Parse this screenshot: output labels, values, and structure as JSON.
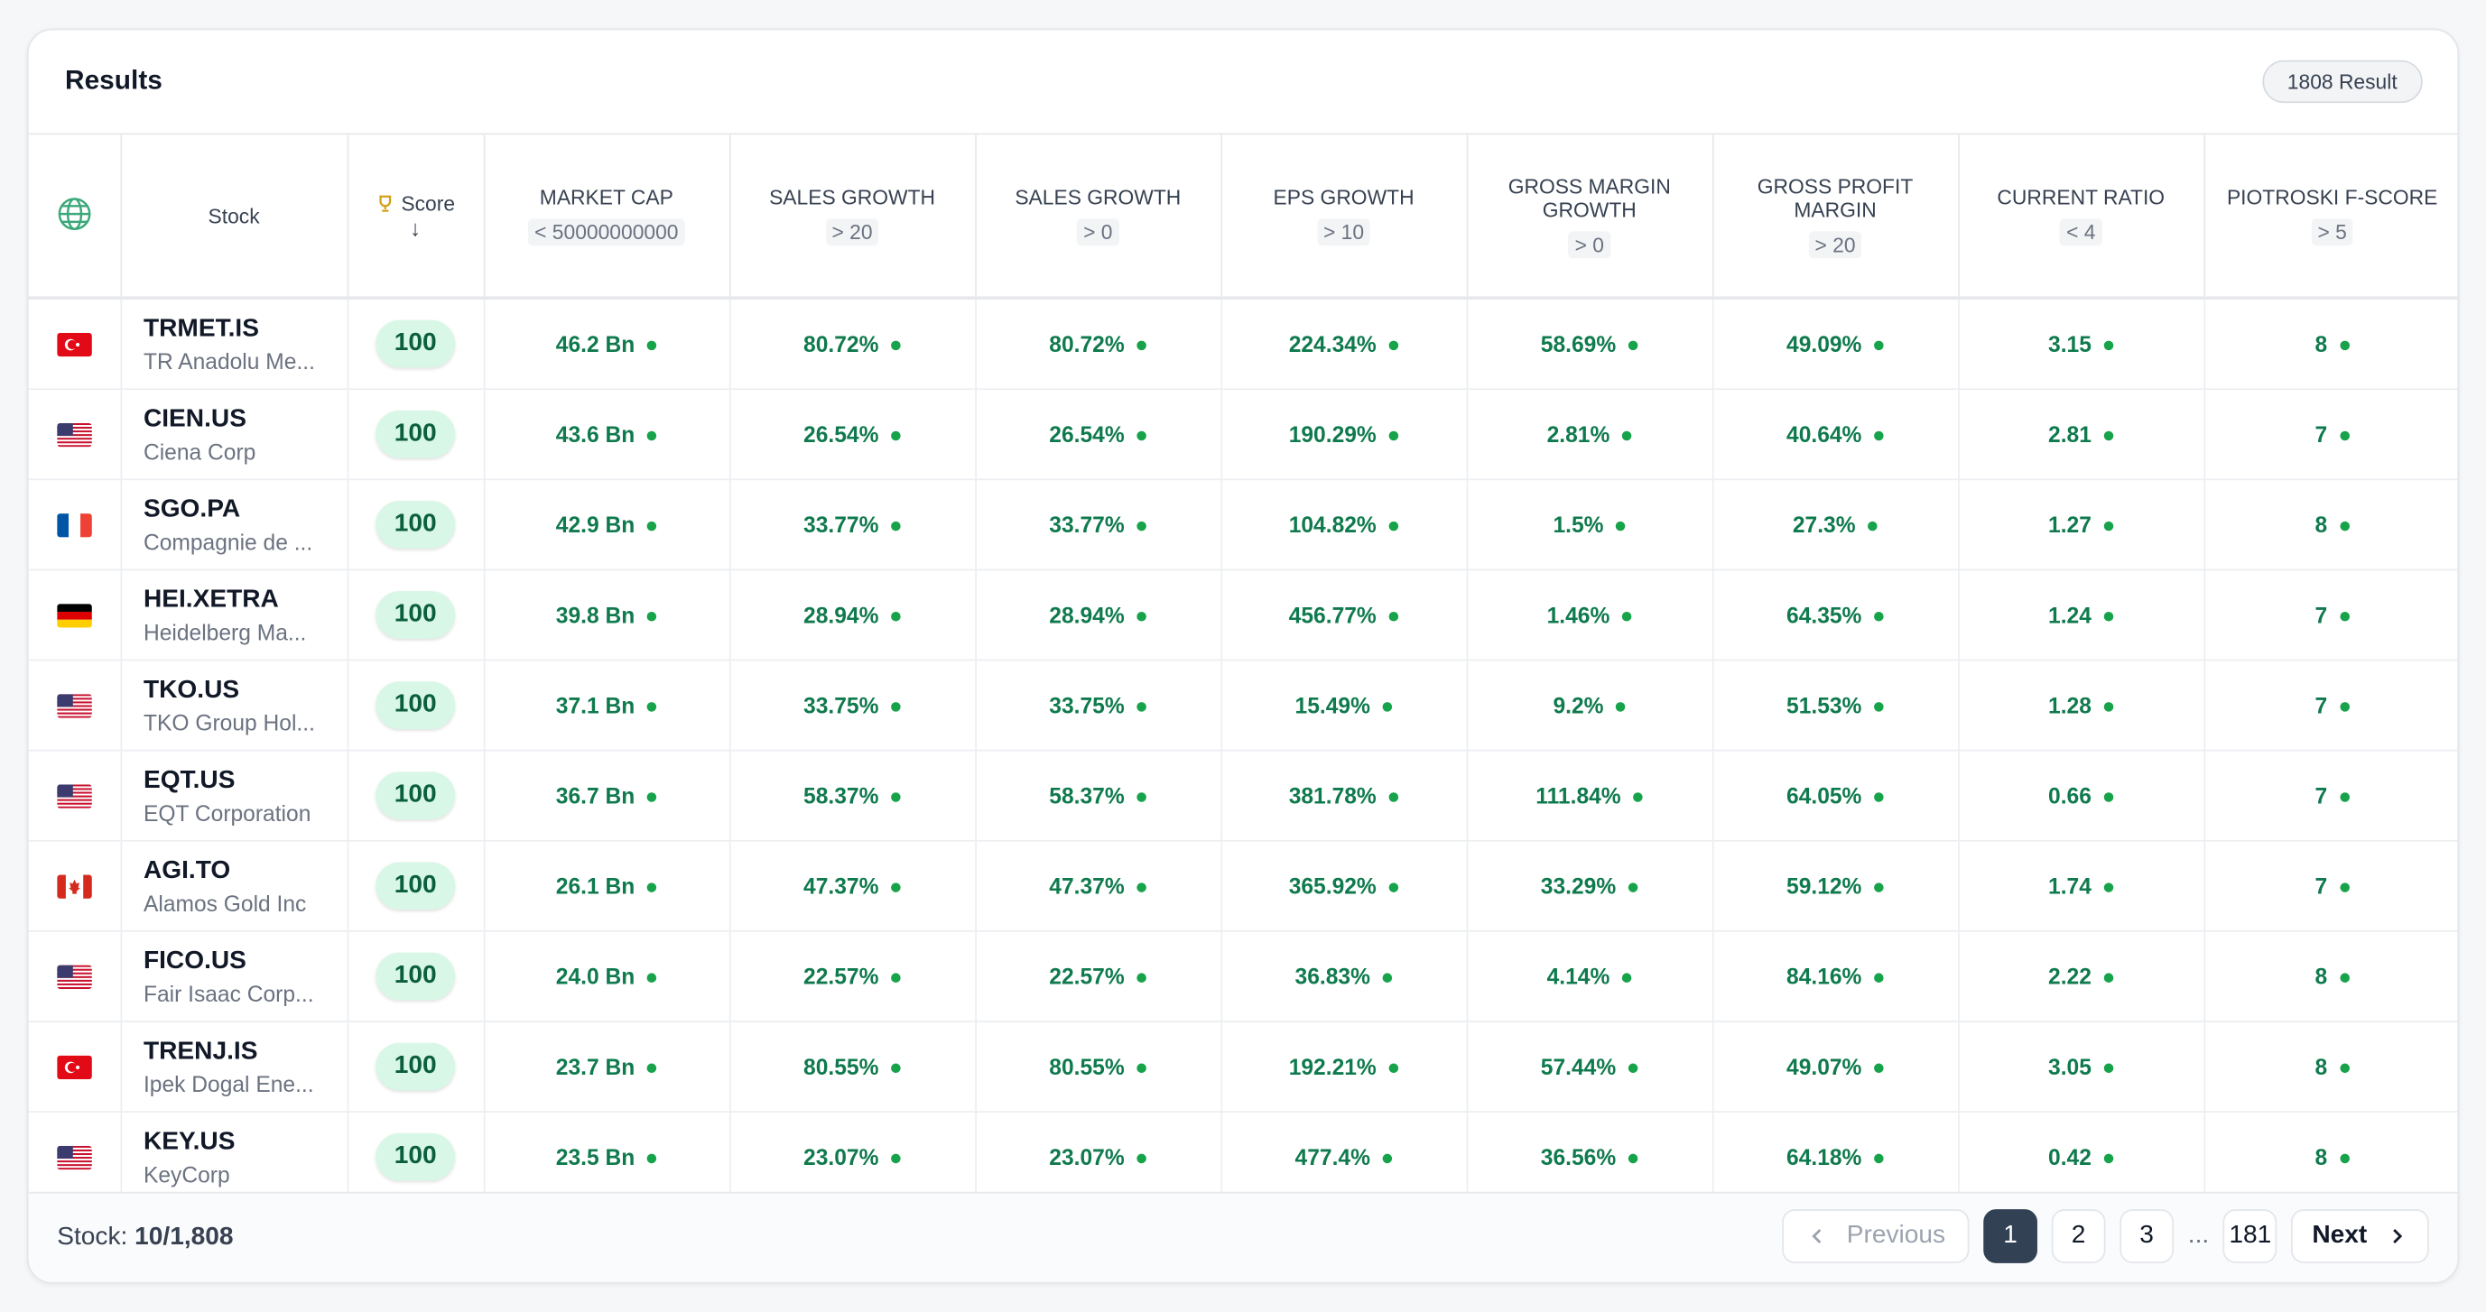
{
  "header": {
    "title": "Results",
    "badge": "1808 Result"
  },
  "table": {
    "columns": [
      {
        "label": "Stock"
      },
      {
        "label": "Score"
      },
      {
        "label": "MARKET CAP",
        "filter": "< 50000000000"
      },
      {
        "label": "SALES GROWTH",
        "filter": "> 20"
      },
      {
        "label": "SALES GROWTH",
        "filter": "> 0"
      },
      {
        "label": "EPS GROWTH",
        "filter": "> 10"
      },
      {
        "label": "GROSS MARGIN GROWTH",
        "filter": "> 0"
      },
      {
        "label": "GROSS PROFIT MARGIN",
        "filter": "> 20"
      },
      {
        "label": "CURRENT RATIO",
        "filter": "< 4"
      },
      {
        "label": "PIOTROSKI F-SCORE",
        "filter": "> 5"
      }
    ],
    "rows": [
      {
        "flag": "tr",
        "symbol": "TRMET.IS",
        "name": "TR Anadolu Me...",
        "score": "100",
        "cells": [
          "46.2 Bn",
          "80.72%",
          "80.72%",
          "224.34%",
          "58.69%",
          "49.09%",
          "3.15",
          "8"
        ]
      },
      {
        "flag": "us",
        "symbol": "CIEN.US",
        "name": "Ciena Corp",
        "score": "100",
        "cells": [
          "43.6 Bn",
          "26.54%",
          "26.54%",
          "190.29%",
          "2.81%",
          "40.64%",
          "2.81",
          "7"
        ]
      },
      {
        "flag": "fr",
        "symbol": "SGO.PA",
        "name": "Compagnie de ...",
        "score": "100",
        "cells": [
          "42.9 Bn",
          "33.77%",
          "33.77%",
          "104.82%",
          "1.5%",
          "27.3%",
          "1.27",
          "8"
        ]
      },
      {
        "flag": "de",
        "symbol": "HEI.XETRA",
        "name": "Heidelberg Ma...",
        "score": "100",
        "cells": [
          "39.8 Bn",
          "28.94%",
          "28.94%",
          "456.77%",
          "1.46%",
          "64.35%",
          "1.24",
          "7"
        ]
      },
      {
        "flag": "us",
        "symbol": "TKO.US",
        "name": "TKO Group Hol...",
        "score": "100",
        "cells": [
          "37.1 Bn",
          "33.75%",
          "33.75%",
          "15.49%",
          "9.2%",
          "51.53%",
          "1.28",
          "7"
        ]
      },
      {
        "flag": "us",
        "symbol": "EQT.US",
        "name": "EQT Corporation",
        "score": "100",
        "cells": [
          "36.7 Bn",
          "58.37%",
          "58.37%",
          "381.78%",
          "111.84%",
          "64.05%",
          "0.66",
          "7"
        ]
      },
      {
        "flag": "ca",
        "symbol": "AGI.TO",
        "name": "Alamos Gold Inc",
        "score": "100",
        "cells": [
          "26.1 Bn",
          "47.37%",
          "47.37%",
          "365.92%",
          "33.29%",
          "59.12%",
          "1.74",
          "7"
        ]
      },
      {
        "flag": "us",
        "symbol": "FICO.US",
        "name": "Fair Isaac Corp...",
        "score": "100",
        "cells": [
          "24.0 Bn",
          "22.57%",
          "22.57%",
          "36.83%",
          "4.14%",
          "84.16%",
          "2.22",
          "8"
        ]
      },
      {
        "flag": "tr",
        "symbol": "TRENJ.IS",
        "name": "Ipek Dogal Ene...",
        "score": "100",
        "cells": [
          "23.7 Bn",
          "80.55%",
          "80.55%",
          "192.21%",
          "57.44%",
          "49.07%",
          "3.05",
          "8"
        ]
      },
      {
        "flag": "us",
        "symbol": "KEY.US",
        "name": "KeyCorp",
        "score": "100",
        "cells": [
          "23.5 Bn",
          "23.07%",
          "23.07%",
          "477.4%",
          "36.56%",
          "64.18%",
          "0.42",
          "8"
        ]
      }
    ]
  },
  "footer": {
    "label": "Stock:",
    "count": "10/1,808",
    "pagination": {
      "previous": "Previous",
      "pages": [
        "1",
        "2",
        "3",
        "...",
        "181"
      ],
      "next": "Next"
    }
  }
}
